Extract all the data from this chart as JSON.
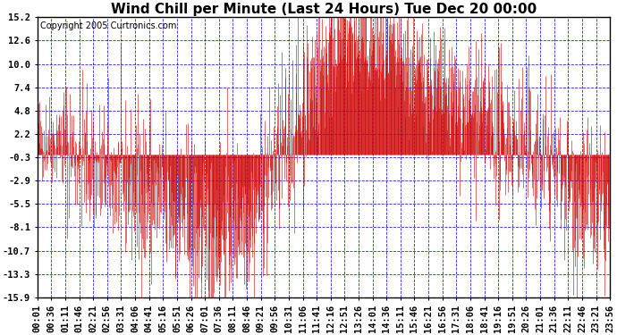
{
  "title": "Wind Chill per Minute (Last 24 Hours) Tue Dec 20 00:00",
  "copyright": "Copyright 2005 Curtronics.com",
  "yticks": [
    15.2,
    12.6,
    10.0,
    7.4,
    4.8,
    2.2,
    -0.3,
    -2.9,
    -5.5,
    -8.1,
    -10.7,
    -13.3,
    -15.9
  ],
  "ylim": [
    -15.9,
    15.2
  ],
  "line_color": "#cc0000",
  "bg_color": "white",
  "grid_color": "blue",
  "title_fontsize": 11,
  "copyright_fontsize": 7,
  "tick_fontsize": 7.5,
  "xtick_labels": [
    "00:01",
    "00:36",
    "01:11",
    "01:46",
    "02:21",
    "02:56",
    "03:31",
    "04:06",
    "04:41",
    "05:16",
    "05:51",
    "06:26",
    "07:01",
    "07:36",
    "08:11",
    "08:46",
    "09:21",
    "09:56",
    "10:31",
    "11:06",
    "11:41",
    "12:16",
    "12:51",
    "13:26",
    "14:01",
    "14:36",
    "15:11",
    "15:46",
    "16:21",
    "16:56",
    "17:31",
    "18:06",
    "18:41",
    "19:16",
    "19:51",
    "20:26",
    "21:01",
    "21:36",
    "22:11",
    "22:46",
    "23:21",
    "23:56"
  ],
  "seed": 42
}
